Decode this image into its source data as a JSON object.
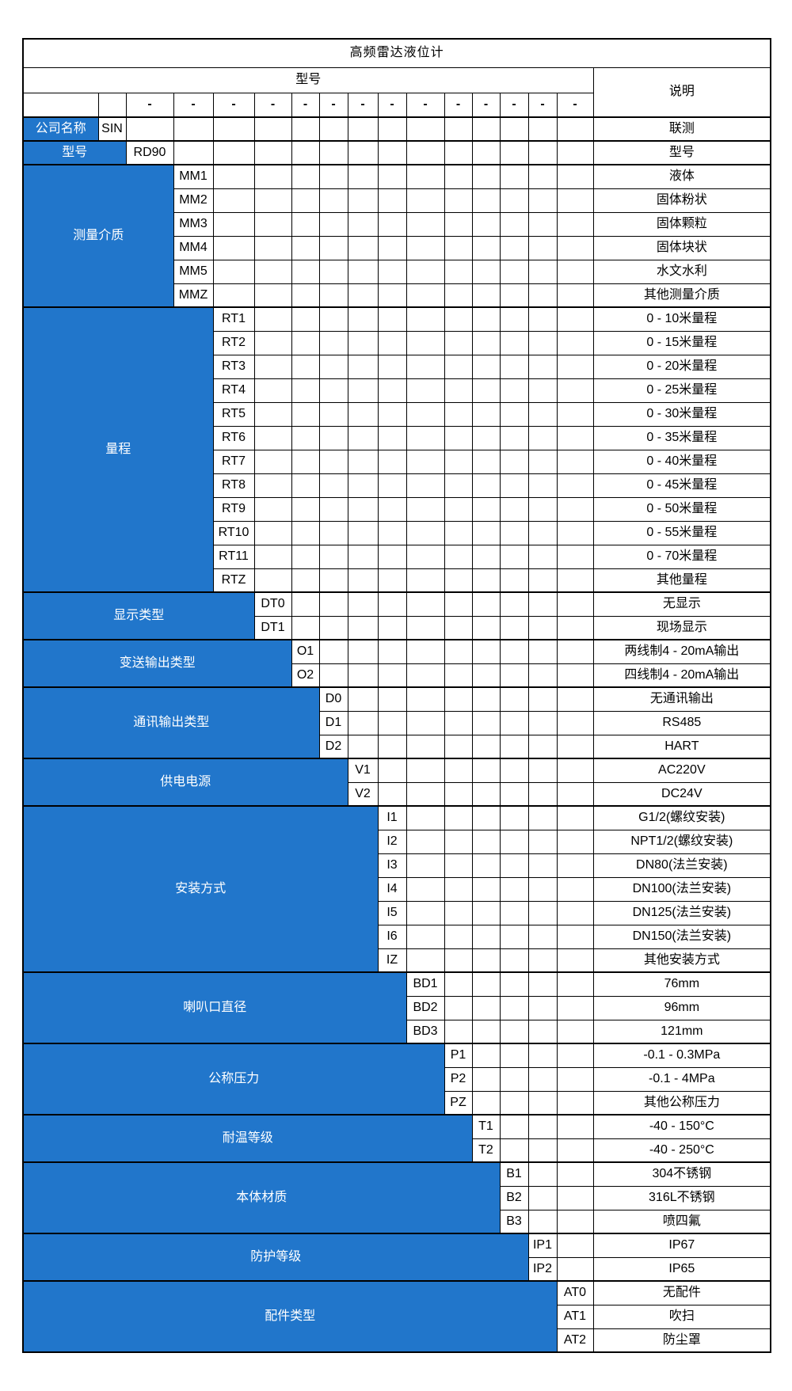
{
  "title": "高频雷达液位计",
  "header": {
    "model_label": "型号",
    "desc_label": "说明",
    "dash": "-"
  },
  "colors": {
    "accent_blue": "#2176CB",
    "border_black": "#000000",
    "category_text": "#ffffff",
    "body_text": "#000000"
  },
  "sections": [
    {
      "label": "公司名称",
      "options": [
        {
          "code": "SIN",
          "desc": "联测"
        }
      ]
    },
    {
      "label": "型号",
      "options": [
        {
          "code": "RD90",
          "desc": "型号"
        }
      ]
    },
    {
      "label": "测量介质",
      "options": [
        {
          "code": "MM1",
          "desc": "液体"
        },
        {
          "code": "MM2",
          "desc": "固体粉状"
        },
        {
          "code": "MM3",
          "desc": "固体颗粒"
        },
        {
          "code": "MM4",
          "desc": "固体块状"
        },
        {
          "code": "MM5",
          "desc": "水文水利"
        },
        {
          "code": "MMZ",
          "desc": "其他测量介质"
        }
      ]
    },
    {
      "label": "量程",
      "options": [
        {
          "code": "RT1",
          "desc": "0 - 10米量程"
        },
        {
          "code": "RT2",
          "desc": "0 - 15米量程"
        },
        {
          "code": "RT3",
          "desc": "0 - 20米量程"
        },
        {
          "code": "RT4",
          "desc": "0 - 25米量程"
        },
        {
          "code": "RT5",
          "desc": "0 - 30米量程"
        },
        {
          "code": "RT6",
          "desc": "0 - 35米量程"
        },
        {
          "code": "RT7",
          "desc": "0 - 40米量程"
        },
        {
          "code": "RT8",
          "desc": "0 - 45米量程"
        },
        {
          "code": "RT9",
          "desc": "0 - 50米量程"
        },
        {
          "code": "RT10",
          "desc": "0 - 55米量程"
        },
        {
          "code": "RT11",
          "desc": "0 - 70米量程"
        },
        {
          "code": "RTZ",
          "desc": "其他量程"
        }
      ]
    },
    {
      "label": "显示类型",
      "options": [
        {
          "code": "DT0",
          "desc": "无显示"
        },
        {
          "code": "DT1",
          "desc": "现场显示"
        }
      ]
    },
    {
      "label": "变送输出类型",
      "options": [
        {
          "code": "O1",
          "desc": "两线制4 - 20mA输出"
        },
        {
          "code": "O2",
          "desc": "四线制4 - 20mA输出"
        }
      ]
    },
    {
      "label": "通讯输出类型",
      "options": [
        {
          "code": "D0",
          "desc": "无通讯输出"
        },
        {
          "code": "D1",
          "desc": "RS485"
        },
        {
          "code": "D2",
          "desc": "HART"
        }
      ]
    },
    {
      "label": "供电电源",
      "options": [
        {
          "code": "V1",
          "desc": "AC220V"
        },
        {
          "code": "V2",
          "desc": "DC24V"
        }
      ]
    },
    {
      "label": "安装方式",
      "options": [
        {
          "code": "I1",
          "desc": "G1/2(螺纹安装)"
        },
        {
          "code": "I2",
          "desc": "NPT1/2(螺纹安装)"
        },
        {
          "code": "I3",
          "desc": "DN80(法兰安装)"
        },
        {
          "code": "I4",
          "desc": "DN100(法兰安装)"
        },
        {
          "code": "I5",
          "desc": "DN125(法兰安装)"
        },
        {
          "code": "I6",
          "desc": "DN150(法兰安装)"
        },
        {
          "code": "IZ",
          "desc": "其他安装方式"
        }
      ]
    },
    {
      "label": "喇叭口直径",
      "options": [
        {
          "code": "BD1",
          "desc": "76mm"
        },
        {
          "code": "BD2",
          "desc": "96mm"
        },
        {
          "code": "BD3",
          "desc": "121mm"
        }
      ]
    },
    {
      "label": "公称压力",
      "options": [
        {
          "code": "P1",
          "desc": "-0.1 - 0.3MPa"
        },
        {
          "code": "P2",
          "desc": "-0.1 - 4MPa"
        },
        {
          "code": "PZ",
          "desc": "其他公称压力"
        }
      ]
    },
    {
      "label": "耐温等级",
      "options": [
        {
          "code": "T1",
          "desc": "-40 - 150°C"
        },
        {
          "code": "T2",
          "desc": "-40 - 250°C"
        }
      ]
    },
    {
      "label": "本体材质",
      "options": [
        {
          "code": "B1",
          "desc": "304不锈钢"
        },
        {
          "code": "B2",
          "desc": "316L不锈钢"
        },
        {
          "code": "B3",
          "desc": "喷四氟"
        }
      ]
    },
    {
      "label": "防护等级",
      "options": [
        {
          "code": "IP1",
          "desc": "IP67"
        },
        {
          "code": "IP2",
          "desc": "IP65"
        }
      ]
    },
    {
      "label": "配件类型",
      "options": [
        {
          "code": "AT0",
          "desc": "无配件"
        },
        {
          "code": "AT1",
          "desc": "吹扫"
        },
        {
          "code": "AT2",
          "desc": "防尘罩"
        }
      ]
    }
  ]
}
